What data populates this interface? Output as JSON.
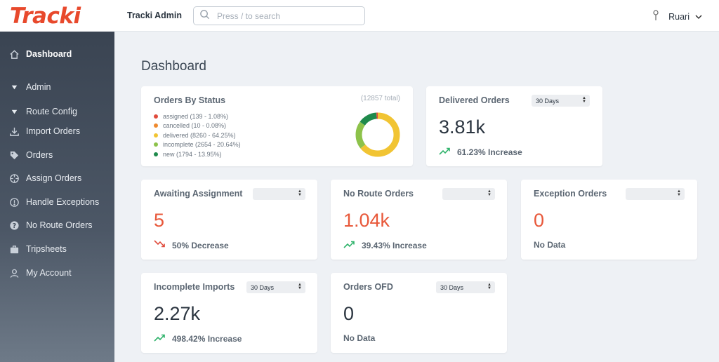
{
  "app": {
    "logo": "Tracki",
    "title": "Tracki Admin"
  },
  "search": {
    "placeholder": "Press / to search",
    "value": ""
  },
  "user": {
    "name": "Ruari"
  },
  "sidebar": {
    "items": [
      {
        "label": "Dashboard",
        "icon": "home-icon"
      },
      {
        "label": "Admin",
        "icon": "triangle-down-icon"
      },
      {
        "label": "Route Config",
        "icon": "triangle-down-icon"
      },
      {
        "label": "Import Orders",
        "icon": "download-icon"
      },
      {
        "label": "Orders",
        "icon": "tag-icon"
      },
      {
        "label": "Assign Orders",
        "icon": "crosshair-icon"
      },
      {
        "label": "Handle Exceptions",
        "icon": "exclamation-icon"
      },
      {
        "label": "No Route Orders",
        "icon": "question-icon"
      },
      {
        "label": "Tripsheets",
        "icon": "briefcase-icon"
      },
      {
        "label": "My Account",
        "icon": "user-icon"
      }
    ]
  },
  "page": {
    "title": "Dashboard"
  },
  "status_card": {
    "title": "Orders By Status",
    "total": "(12857 total)",
    "legend": [
      {
        "label": "assigned (139 - 1.08%)",
        "color": "#e04b3c",
        "value": 139
      },
      {
        "label": "cancelled (10 - 0.08%)",
        "color": "#ef8a2e",
        "value": 10
      },
      {
        "label": "delivered (8260 - 64.25%)",
        "color": "#f1c433",
        "value": 8260
      },
      {
        "label": "incomplete (2654 - 20.64%)",
        "color": "#8dc24a",
        "value": 2654
      },
      {
        "label": "new (1794 - 13.95%)",
        "color": "#1f8a4c",
        "value": 1794
      }
    ]
  },
  "delivered": {
    "title": "Delivered Orders",
    "select": "30 Days",
    "value": "3.81k",
    "trend": "61.23% Increase",
    "trend_dir": "up"
  },
  "awaiting": {
    "title": "Awaiting Assignment",
    "select": "",
    "value": "5",
    "trend": "50% Decrease",
    "trend_dir": "down"
  },
  "noroute": {
    "title": "No Route Orders",
    "select": "",
    "value": "1.04k",
    "trend": "39.43% Increase",
    "trend_dir": "up"
  },
  "exception": {
    "title": "Exception Orders",
    "select": "",
    "value": "0",
    "trend": "No Data"
  },
  "incomplete": {
    "title": "Incomplete Imports",
    "select": "30 Days",
    "value": "2.27k",
    "trend": "498.42% Increase",
    "trend_dir": "up"
  },
  "ofd": {
    "title": "Orders OFD",
    "select": "30 Days",
    "value": "0",
    "trend": "No Data"
  },
  "colors": {
    "up": "#2fb36b",
    "down": "#e04b3c",
    "accent": "#e8583a"
  }
}
